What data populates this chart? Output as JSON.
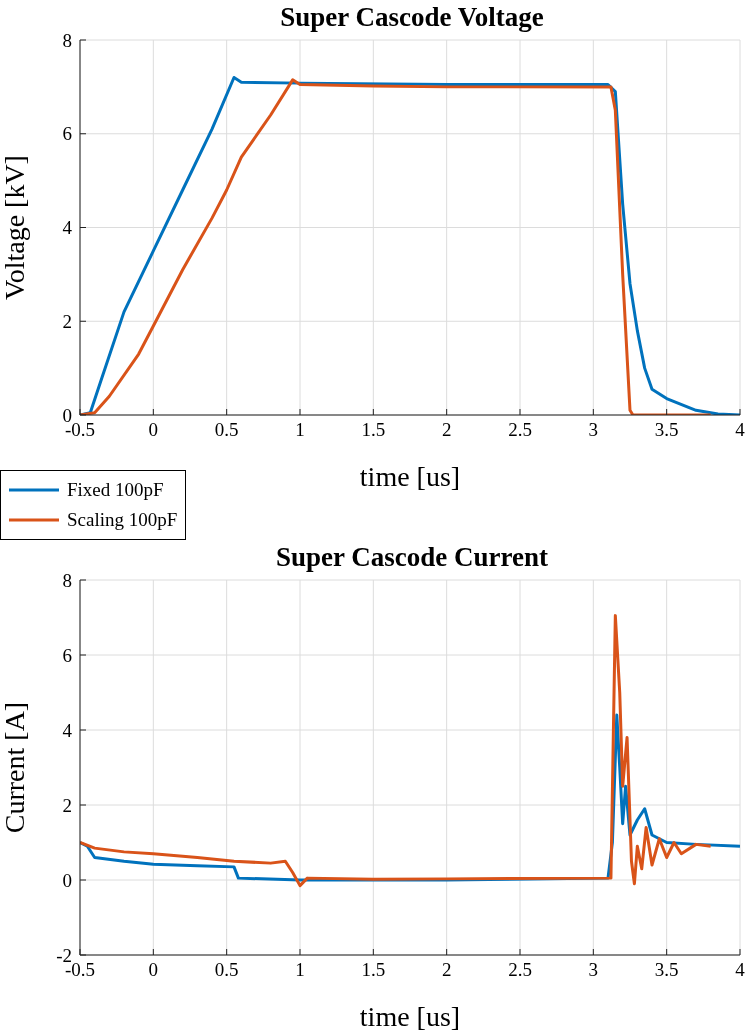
{
  "chart_data": [
    {
      "type": "line",
      "title": "Super Cascode Voltage",
      "xlabel": "time [us]",
      "ylabel": "Voltage [kV]",
      "xlim": [
        -0.5,
        4
      ],
      "xticks": [
        -0.5,
        0,
        0.5,
        1,
        1.5,
        2,
        2.5,
        3,
        3.5,
        4
      ],
      "ylim": [
        0,
        8
      ],
      "yticks": [
        0,
        2,
        4,
        6,
        8
      ],
      "grid": true,
      "legend": "bottom left",
      "line_style": "solid",
      "marker": "none",
      "series": [
        {
          "name": "Fixed 100pF",
          "color": "#0072bd",
          "x": [
            -0.5,
            -0.43,
            -0.35,
            -0.2,
            0,
            0.2,
            0.4,
            0.55,
            0.6,
            1,
            2,
            3.1,
            3.15,
            3.2,
            3.25,
            3.3,
            3.35,
            3.4,
            3.5,
            3.7,
            3.85,
            4
          ],
          "values": [
            0,
            0.05,
            0.8,
            2.2,
            3.5,
            4.8,
            6.1,
            7.2,
            7.1,
            7.08,
            7.05,
            7.05,
            6.9,
            4.5,
            2.8,
            1.8,
            1,
            0.55,
            0.35,
            0.1,
            0.02,
            0
          ]
        },
        {
          "name": "Scaling 100pF",
          "color": "#d95319",
          "x": [
            -0.5,
            -0.4,
            -0.3,
            -0.1,
            0,
            0.2,
            0.4,
            0.5,
            0.6,
            0.8,
            0.95,
            1,
            1.5,
            2,
            3.12,
            3.15,
            3.2,
            3.25,
            3.27,
            3.3,
            3.8
          ],
          "values": [
            0,
            0.05,
            0.4,
            1.3,
            1.9,
            3.1,
            4.2,
            4.8,
            5.5,
            6.4,
            7.15,
            7.05,
            7.02,
            7,
            7,
            6.5,
            3,
            0.1,
            0,
            0,
            0
          ]
        }
      ]
    },
    {
      "type": "line",
      "title": "Super Cascode Current",
      "xlabel": "time [us]",
      "ylabel": "Current [A]",
      "xlim": [
        -0.5,
        4
      ],
      "xticks": [
        -0.5,
        0,
        0.5,
        1,
        1.5,
        2,
        2.5,
        3,
        3.5,
        4
      ],
      "ylim": [
        -2,
        8
      ],
      "yticks": [
        -2,
        0,
        2,
        4,
        6,
        8
      ],
      "grid": true,
      "line_style": "solid",
      "marker": "none",
      "series": [
        {
          "color": "#0072bd",
          "x": [
            -0.5,
            -0.45,
            -0.4,
            -0.2,
            0,
            0.3,
            0.55,
            0.58,
            1,
            2,
            3.1,
            3.13,
            3.16,
            3.18,
            3.2,
            3.22,
            3.25,
            3.3,
            3.35,
            3.4,
            3.5,
            3.7,
            4
          ],
          "values": [
            1,
            0.9,
            0.6,
            0.5,
            0.42,
            0.38,
            0.35,
            0.05,
            0,
            0,
            0.05,
            1,
            4.4,
            3,
            1.5,
            2.5,
            1.2,
            1.6,
            1.9,
            1.2,
            1,
            0.95,
            0.9
          ]
        },
        {
          "color": "#d95319",
          "x": [
            -0.5,
            -0.4,
            -0.2,
            0,
            0.3,
            0.55,
            0.8,
            0.9,
            0.95,
            1,
            1.05,
            1.5,
            2,
            3.12,
            3.15,
            3.18,
            3.2,
            3.23,
            3.26,
            3.28,
            3.3,
            3.33,
            3.36,
            3.4,
            3.45,
            3.5,
            3.55,
            3.6,
            3.7,
            3.8
          ],
          "values": [
            1,
            0.85,
            0.75,
            0.7,
            0.6,
            0.5,
            0.45,
            0.5,
            0.2,
            -0.15,
            0.05,
            0.02,
            0.03,
            0.05,
            7.05,
            5,
            2.5,
            3.8,
            0.5,
            -0.1,
            0.9,
            0.3,
            1.4,
            0.4,
            1.1,
            0.6,
            1,
            0.7,
            0.95,
            0.9
          ]
        }
      ]
    }
  ]
}
